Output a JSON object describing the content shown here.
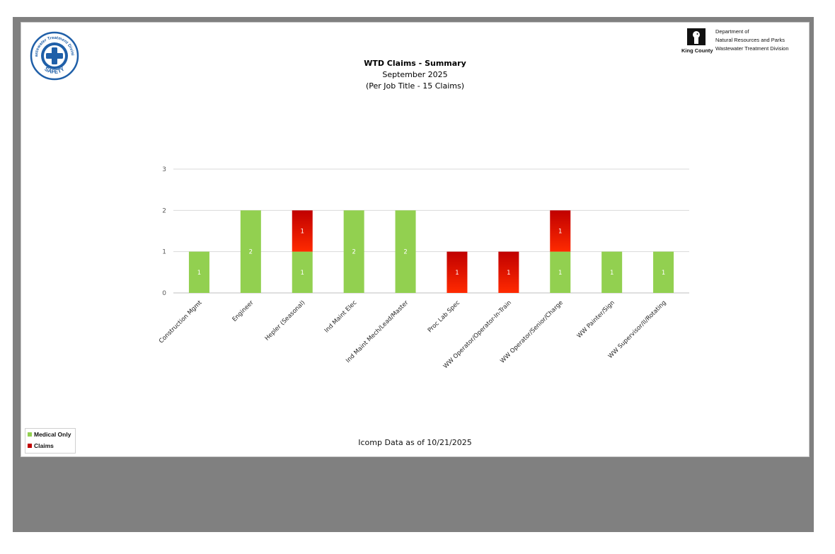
{
  "colors": {
    "medical_only": "#92d050",
    "claims_top": "#c00000",
    "claims_bottom": "#ff2a00",
    "frame": "#808080",
    "grid": "#d9d9d9",
    "logo_blue": "#1f5fa8"
  },
  "logo_left": {
    "icon": "safety-cross-seal-icon",
    "ring_text_top": "Wastewater Treatment Division",
    "ring_text_bottom": "SAFETY"
  },
  "logo_right": {
    "icon": "king-county-logo-icon",
    "brand": "King County",
    "lines": [
      "Department of",
      "Natural Resources and Parks",
      "Wastewater Treatment Division"
    ]
  },
  "header": {
    "title": "WTD Claims - Summary",
    "subtitle_1": "September 2025",
    "subtitle_2": "(Per Job Title - 15 Claims)"
  },
  "legend": {
    "items": [
      {
        "label": "Medical Only"
      },
      {
        "label": "Claims"
      }
    ]
  },
  "footer": "Icomp Data as of 10/21/2025",
  "chart_data": {
    "type": "bar",
    "stacked": true,
    "categories": [
      "Construction Mgmt",
      "Engineer",
      "Hepler (Seasonal)",
      "Ind Maint Elec",
      "Ind Maint Mech/Lead/Master",
      "Proc Lab Spec",
      "WW Operator/Operator-In-Train",
      "WW Operator/Senior/Charge",
      "WW Painter/Sign",
      "WW Supervisor/II/Rotating"
    ],
    "series": [
      {
        "name": "Medical Only",
        "values": [
          1,
          2,
          1,
          2,
          2,
          0,
          0,
          1,
          1,
          1
        ]
      },
      {
        "name": "Claims",
        "values": [
          0,
          0,
          1,
          0,
          0,
          1,
          1,
          1,
          0,
          0
        ]
      }
    ],
    "yticks": [
      0,
      1,
      2,
      3
    ],
    "ylim": [
      0,
      3
    ],
    "grid": true,
    "data_labels": true,
    "legend_position": "bottom-left"
  }
}
